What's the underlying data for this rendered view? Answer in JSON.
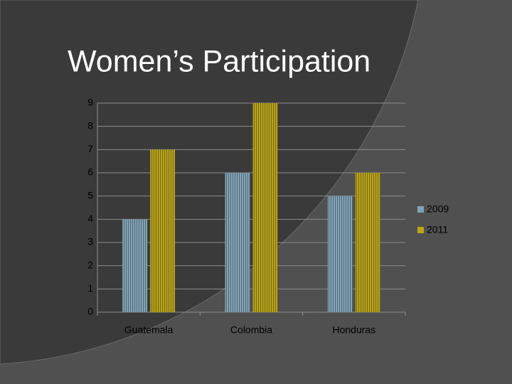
{
  "chart_data": {
    "type": "bar",
    "title": "Women’s Participation",
    "categories": [
      "Guatemala",
      "Colombia",
      "Honduras"
    ],
    "series": [
      {
        "name": "2009",
        "color": "#7fa3b6",
        "values": [
          4,
          6,
          5
        ]
      },
      {
        "name": "2011",
        "color": "#b9a417",
        "values": [
          7,
          9,
          6
        ]
      }
    ],
    "ylim": [
      0,
      9
    ],
    "yticks": [
      0,
      1,
      2,
      3,
      4,
      5,
      6,
      7,
      8,
      9
    ],
    "grid": true,
    "legend": "right"
  }
}
